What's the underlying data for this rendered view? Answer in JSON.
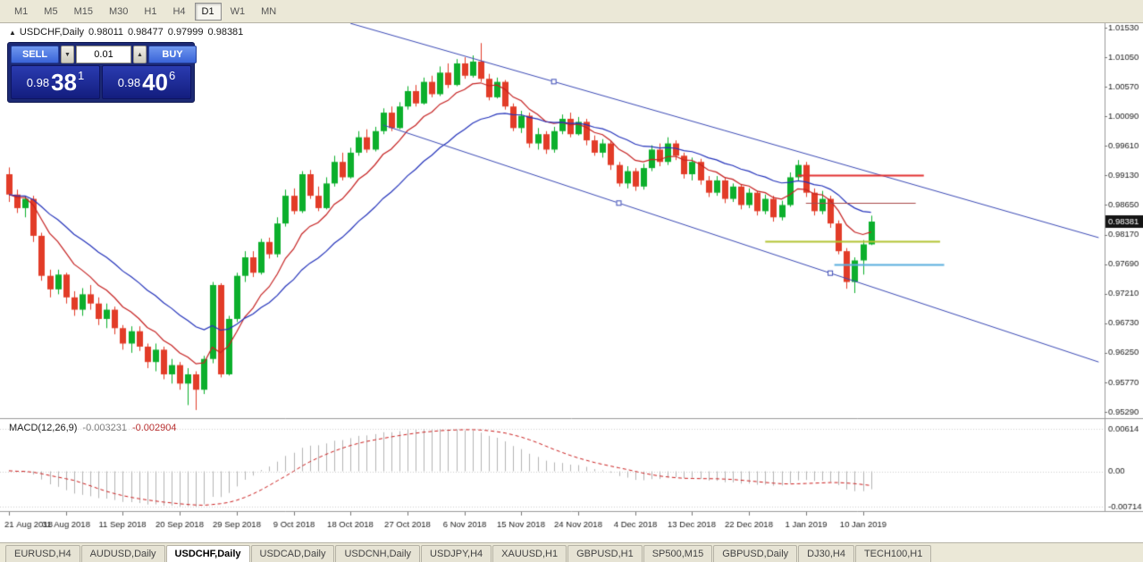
{
  "toolbar": {
    "timeframes": [
      "M1",
      "M5",
      "M15",
      "M30",
      "H1",
      "H4",
      "D1",
      "W1",
      "MN"
    ],
    "active": "D1"
  },
  "symbol_info": {
    "arrow": "▲",
    "symbol": "USDCHF,Daily",
    "open": "0.98011",
    "high": "0.98477",
    "low": "0.97999",
    "close": "0.98381"
  },
  "trade": {
    "sell_label": "SELL",
    "buy_label": "BUY",
    "volume": "0.01",
    "decrease_icon": "▼",
    "increase_icon": "▲",
    "sell_price_major": "0.98",
    "sell_price_pips": "38",
    "sell_price_pipette": "1",
    "buy_price_major": "0.98",
    "buy_price_pips": "40",
    "buy_price_pipette": "6"
  },
  "macd": {
    "name": "MACD(12,26,9)",
    "value": "-0.003231",
    "signal_value": "-0.002904",
    "axis_labels": {
      "top": "0.00614",
      "zero": "0.00",
      "bottom": "-0.00714"
    }
  },
  "price_axis": {
    "ticks": [
      "1.01530",
      "1.01050",
      "1.00570",
      "1.00090",
      "0.99610",
      "0.99130",
      "0.98650",
      "0.98170",
      "0.97690",
      "0.97210",
      "0.96730",
      "0.96250",
      "0.95770",
      "0.95290"
    ],
    "last_price_badge": "0.98381"
  },
  "time_axis": {
    "labels": [
      "21 Aug 2018",
      "31 Aug 2018",
      "11 Sep 2018",
      "20 Sep 2018",
      "29 Sep 2018",
      "9 Oct 2018",
      "18 Oct 2018",
      "27 Oct 2018",
      "6 Nov 2018",
      "15 Nov 2018",
      "24 Nov 2018",
      "4 Dec 2018",
      "13 Dec 2018",
      "22 Dec 2018",
      "1 Jan 2019",
      "10 Jan 2019"
    ]
  },
  "tabs": {
    "items": [
      "EURUSD,H4",
      "AUDUSD,Daily",
      "USDCHF,Daily",
      "USDCAD,Daily",
      "USDCNH,Daily",
      "USDJPY,H4",
      "XAUUSD,H1",
      "GBPUSD,H1",
      "SP500,M15",
      "GBPUSD,Daily",
      "DJ30,H4",
      "TECH100,H1"
    ],
    "active": "USDCHF,Daily"
  },
  "chart_data": {
    "type": "candlestick",
    "symbol": "USDCHF",
    "timeframe": "Daily",
    "price_range": [
      0.9529,
      1.0153
    ],
    "date_label_every_n_bars": 7,
    "colors": {
      "up": "#0caf2c",
      "down": "#e23c28"
    },
    "overlays": {
      "ma_fast": {
        "type": "EMA",
        "period": 9,
        "color": "#c62222"
      },
      "ma_slow": {
        "type": "EMA",
        "period": 21,
        "color": "#2433bb"
      }
    },
    "indicator": {
      "type": "MACD",
      "fast": 12,
      "slow": 26,
      "signal": 9,
      "histogram_color": "#b4b4b4",
      "signal_color": "#cc2020",
      "value": -0.003231,
      "signal_line_value": -0.002904
    },
    "objects": {
      "trendlines": [
        {
          "b1": 42,
          "p1": 1.016,
          "b2": 134,
          "p2": 0.9812,
          "color": "#3a49b5",
          "markers": [
            67
          ]
        },
        {
          "b1": 46,
          "p1": 0.9995,
          "b2": 134,
          "p2": 0.961,
          "color": "#3a49b5",
          "markers": [
            75,
            101
          ]
        }
      ],
      "hlines": [
        {
          "price": 0.9913,
          "b1": 97,
          "b2": 112.5,
          "color": "#e23030",
          "width": 2
        },
        {
          "price": 0.9868,
          "b1": 98,
          "b2": 111.5,
          "color": "#a84848",
          "width": 1
        },
        {
          "price": 0.9806,
          "b1": 93,
          "b2": 114.5,
          "color": "#b4c433",
          "width": 2
        },
        {
          "price": 0.9769,
          "b1": 101.5,
          "b2": 115,
          "color": "#5aaede",
          "width": 2
        }
      ]
    },
    "candles": [
      [
        0.9915,
        0.9926,
        0.987,
        0.9882
      ],
      [
        0.9882,
        0.989,
        0.9852,
        0.986
      ],
      [
        0.986,
        0.988,
        0.9845,
        0.9875
      ],
      [
        0.9875,
        0.988,
        0.9805,
        0.9815
      ],
      [
        0.9815,
        0.982,
        0.9742,
        0.975
      ],
      [
        0.975,
        0.976,
        0.9715,
        0.9728
      ],
      [
        0.9728,
        0.976,
        0.972,
        0.9752
      ],
      [
        0.9752,
        0.9755,
        0.9705,
        0.9715
      ],
      [
        0.9715,
        0.9725,
        0.9685,
        0.9695
      ],
      [
        0.9695,
        0.973,
        0.9685,
        0.972
      ],
      [
        0.972,
        0.9735,
        0.9695,
        0.9705
      ],
      [
        0.9705,
        0.9715,
        0.967,
        0.968
      ],
      [
        0.968,
        0.9705,
        0.9665,
        0.9695
      ],
      [
        0.9695,
        0.97,
        0.9655,
        0.9665
      ],
      [
        0.9665,
        0.967,
        0.963,
        0.964
      ],
      [
        0.964,
        0.9668,
        0.9625,
        0.966
      ],
      [
        0.966,
        0.9668,
        0.9628,
        0.9635
      ],
      [
        0.9635,
        0.964,
        0.96,
        0.961
      ],
      [
        0.961,
        0.964,
        0.9595,
        0.963
      ],
      [
        0.963,
        0.9635,
        0.9582,
        0.959
      ],
      [
        0.959,
        0.9615,
        0.9575,
        0.9605
      ],
      [
        0.9605,
        0.961,
        0.9565,
        0.9575
      ],
      [
        0.9575,
        0.96,
        0.954,
        0.959
      ],
      [
        0.959,
        0.9595,
        0.9532,
        0.9565
      ],
      [
        0.9565,
        0.962,
        0.9558,
        0.9615
      ],
      [
        0.9615,
        0.974,
        0.9608,
        0.9735
      ],
      [
        0.9735,
        0.9738,
        0.9585,
        0.959
      ],
      [
        0.959,
        0.9685,
        0.9588,
        0.968
      ],
      [
        0.968,
        0.9755,
        0.9675,
        0.975
      ],
      [
        0.975,
        0.979,
        0.974,
        0.978
      ],
      [
        0.978,
        0.979,
        0.9748,
        0.9755
      ],
      [
        0.9755,
        0.981,
        0.9752,
        0.9805
      ],
      [
        0.9805,
        0.9812,
        0.9778,
        0.9785
      ],
      [
        0.9785,
        0.9845,
        0.978,
        0.9835
      ],
      [
        0.9835,
        0.989,
        0.983,
        0.988
      ],
      [
        0.988,
        0.9892,
        0.985,
        0.9855
      ],
      [
        0.9855,
        0.992,
        0.9852,
        0.9915
      ],
      [
        0.9915,
        0.9922,
        0.9875,
        0.988
      ],
      [
        0.988,
        0.9895,
        0.9855,
        0.986
      ],
      [
        0.986,
        0.991,
        0.9858,
        0.99
      ],
      [
        0.99,
        0.9945,
        0.9895,
        0.9935
      ],
      [
        0.9935,
        0.995,
        0.9905,
        0.991
      ],
      [
        0.991,
        0.9958,
        0.9908,
        0.995
      ],
      [
        0.995,
        0.9985,
        0.9945,
        0.9975
      ],
      [
        0.9975,
        0.9988,
        0.995,
        0.9955
      ],
      [
        0.9955,
        0.9992,
        0.9952,
        0.9985
      ],
      [
        0.9985,
        1.0022,
        0.998,
        1.0015
      ],
      [
        1.0015,
        1.0025,
        0.9985,
        0.999
      ],
      [
        0.999,
        1.0032,
        0.9988,
        1.0025
      ],
      [
        1.0025,
        1.0058,
        1.002,
        1.005
      ],
      [
        1.005,
        1.006,
        1.0025,
        1.003
      ],
      [
        1.003,
        1.0072,
        1.0028,
        1.0065
      ],
      [
        1.0065,
        1.0075,
        1.004,
        1.0045
      ],
      [
        1.0045,
        1.009,
        1.0042,
        1.008
      ],
      [
        1.008,
        1.0095,
        1.0055,
        1.006
      ],
      [
        1.006,
        1.0102,
        1.0058,
        1.0095
      ],
      [
        1.0095,
        1.0105,
        1.007,
        1.0075
      ],
      [
        1.0075,
        1.0108,
        1.0072,
        1.0098
      ],
      [
        1.0098,
        1.0128,
        1.0065,
        1.007
      ],
      [
        1.007,
        1.0078,
        1.0035,
        1.004
      ],
      [
        1.004,
        1.0072,
        1.0038,
        1.0065
      ],
      [
        1.0065,
        1.0068,
        1.002,
        1.0025
      ],
      [
        1.0025,
        1.003,
        0.9985,
        0.999
      ],
      [
        0.999,
        1.0018,
        0.9982,
        1.001
      ],
      [
        1.001,
        1.0015,
        0.9958,
        0.9965
      ],
      [
        0.9965,
        0.999,
        0.9955,
        0.998
      ],
      [
        0.998,
        0.9985,
        0.9948,
        0.9955
      ],
      [
        0.9955,
        0.9992,
        0.995,
        0.9985
      ],
      [
        0.9985,
        1.0012,
        0.998,
        1.0005
      ],
      [
        1.0005,
        1.0015,
        0.9975,
        0.998
      ],
      [
        0.998,
        1.0008,
        0.9978,
        1.0
      ],
      [
        1.0,
        1.0005,
        0.9962,
        0.997
      ],
      [
        0.997,
        0.9978,
        0.9945,
        0.995
      ],
      [
        0.995,
        0.9972,
        0.9942,
        0.9965
      ],
      [
        0.9965,
        0.997,
        0.9922,
        0.993
      ],
      [
        0.993,
        0.9935,
        0.9895,
        0.99
      ],
      [
        0.99,
        0.9928,
        0.9892,
        0.992
      ],
      [
        0.992,
        0.9925,
        0.9888,
        0.9895
      ],
      [
        0.9895,
        0.9932,
        0.989,
        0.9925
      ],
      [
        0.9925,
        0.9962,
        0.992,
        0.9955
      ],
      [
        0.9955,
        0.9965,
        0.9928,
        0.9935
      ],
      [
        0.9935,
        0.9975,
        0.993,
        0.9965
      ],
      [
        0.9965,
        0.997,
        0.9938,
        0.9945
      ],
      [
        0.9945,
        0.995,
        0.9908,
        0.9915
      ],
      [
        0.9915,
        0.9942,
        0.9905,
        0.9935
      ],
      [
        0.9935,
        0.994,
        0.9898,
        0.9905
      ],
      [
        0.9905,
        0.9912,
        0.9878,
        0.9885
      ],
      [
        0.9885,
        0.9912,
        0.988,
        0.9905
      ],
      [
        0.9905,
        0.991,
        0.9868,
        0.9875
      ],
      [
        0.9875,
        0.99,
        0.987,
        0.9895
      ],
      [
        0.9895,
        0.9898,
        0.9858,
        0.9865
      ],
      [
        0.9865,
        0.9892,
        0.986,
        0.9885
      ],
      [
        0.9885,
        0.9888,
        0.9848,
        0.9855
      ],
      [
        0.9855,
        0.9882,
        0.985,
        0.9875
      ],
      [
        0.9875,
        0.988,
        0.9838,
        0.9845
      ],
      [
        0.9845,
        0.9872,
        0.984,
        0.9865
      ],
      [
        0.9865,
        0.9918,
        0.9862,
        0.991
      ],
      [
        0.991,
        0.9938,
        0.9905,
        0.993
      ],
      [
        0.993,
        0.9935,
        0.9878,
        0.9885
      ],
      [
        0.9885,
        0.9892,
        0.9848,
        0.9855
      ],
      [
        0.9855,
        0.9888,
        0.985,
        0.9875
      ],
      [
        0.9875,
        0.988,
        0.9828,
        0.9835
      ],
      [
        0.9835,
        0.984,
        0.9785,
        0.979
      ],
      [
        0.979,
        0.9795,
        0.9729,
        0.974
      ],
      [
        0.974,
        0.978,
        0.9722,
        0.9775
      ],
      [
        0.9775,
        0.9808,
        0.9752,
        0.98011
      ],
      [
        0.98011,
        0.98477,
        0.97999,
        0.98381
      ]
    ]
  }
}
